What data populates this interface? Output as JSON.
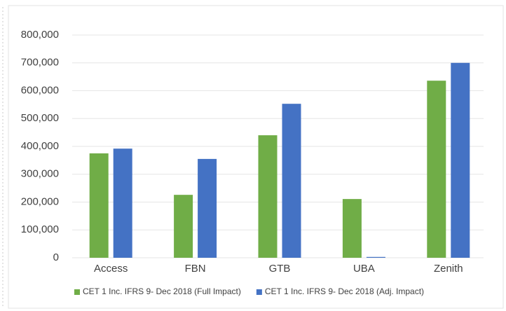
{
  "chart_data": {
    "type": "bar",
    "categories": [
      "Access",
      "FBN",
      "GTB",
      "UBA",
      "Zenith"
    ],
    "series": [
      {
        "name": "CET 1 Inc. IFRS 9- Dec 2018 (Full Impact)",
        "color": "#70ad47",
        "values": [
          375000,
          226000,
          440000,
          211000,
          636000
        ]
      },
      {
        "name": "CET 1 Inc. IFRS 9- Dec 2018 (Adj. Impact)",
        "color": "#4472c4",
        "values": [
          392000,
          355000,
          553000,
          3000,
          700000
        ]
      }
    ],
    "ylim": [
      0,
      800000
    ],
    "yticks": [
      0,
      {
        "value": 100000,
        "label": "100,000"
      },
      {
        "value": 200000,
        "label": "200,000"
      },
      {
        "value": 300000,
        "label": "300,000"
      },
      {
        "value": 400000,
        "label": "400,000"
      },
      {
        "value": 500000,
        "label": "500,000"
      },
      {
        "value": 600000,
        "label": "600,000"
      },
      {
        "value": 700000,
        "label": "700,000"
      },
      {
        "value": 800000,
        "label": "800,000"
      }
    ],
    "grid": true,
    "legend": "bottom"
  }
}
